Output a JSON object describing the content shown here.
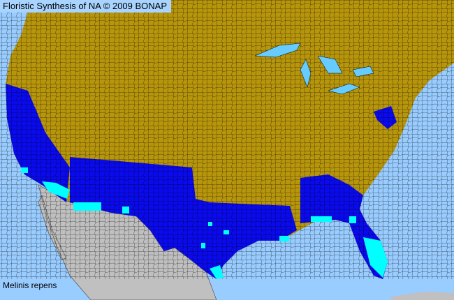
{
  "header": {
    "title": "Floristic Synthesis of NA © 2009 BONAP"
  },
  "map": {
    "species_label": "Melinis repens",
    "colors": {
      "ocean": "#99ccff",
      "lakes": "#66ccff",
      "absent": "#b8960c",
      "present_state": "#0a0aee",
      "present_county": "#00ffff",
      "outside_range": "#c0c0c0",
      "borders": "#000000"
    }
  }
}
